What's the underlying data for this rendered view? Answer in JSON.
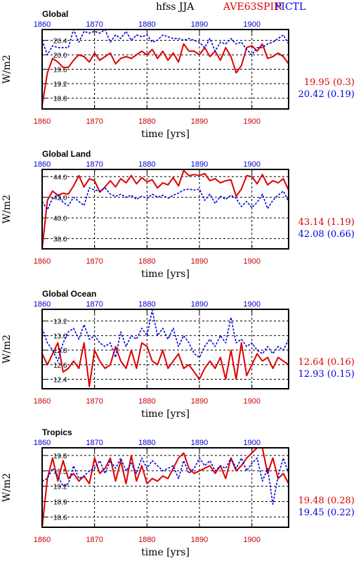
{
  "header": {
    "title": "hfss JJA",
    "legend_red": "AVE63SPIN",
    "legend_blue": "PICTL",
    "legend_red_color": "#dd0000",
    "legend_blue_color": "#0000dd"
  },
  "chart_data": [
    {
      "type": "line",
      "title": "Global",
      "xlabel": "time [yrs]",
      "ylabel": "W/m2",
      "xlim": [
        1860,
        1907
      ],
      "ylim": [
        18.5,
        20.7
      ],
      "xticks": [
        1860,
        1870,
        1880,
        1890,
        1900
      ],
      "yticks": [
        18.8,
        19.2,
        19.6,
        20.0,
        20.4
      ],
      "ytick_labels": [
        "18.8",
        "19.2",
        "19.6",
        "20.0",
        "20.4"
      ],
      "series": [
        {
          "name": "AVE63SPIN",
          "color": "#dd0000",
          "stat": "19.95 (0.3)",
          "x": [
            1860,
            1861,
            1862,
            1863,
            1864,
            1865,
            1866,
            1867,
            1868,
            1869,
            1870,
            1871,
            1872,
            1873,
            1874,
            1875,
            1876,
            1877,
            1878,
            1879,
            1880,
            1881,
            1882,
            1883,
            1884,
            1885,
            1886,
            1887,
            1888,
            1889,
            1890,
            1891,
            1892,
            1893,
            1894,
            1895,
            1896,
            1897,
            1898,
            1899,
            1900,
            1901,
            1902,
            1903,
            1904,
            1905,
            1906,
            1907
          ],
          "y": [
            18.6,
            19.5,
            19.9,
            19.8,
            19.65,
            19.65,
            19.85,
            20.0,
            19.95,
            19.8,
            20.05,
            19.85,
            19.95,
            20.05,
            19.75,
            19.9,
            19.95,
            19.9,
            20.0,
            20.1,
            20.0,
            20.15,
            19.9,
            20.1,
            19.85,
            20.05,
            19.8,
            20.3,
            20.1,
            20.1,
            20.0,
            20.2,
            19.95,
            20.1,
            19.85,
            20.2,
            19.95,
            19.5,
            19.7,
            20.2,
            20.25,
            20.1,
            20.3,
            19.9,
            19.95,
            20.05,
            19.95,
            19.75
          ]
        },
        {
          "name": "PICTL",
          "color": "#0000dd",
          "stat": "20.42 (0.19)",
          "x": [
            1860,
            1861,
            1862,
            1863,
            1864,
            1865,
            1866,
            1867,
            1868,
            1869,
            1870,
            1871,
            1872,
            1873,
            1874,
            1875,
            1876,
            1877,
            1878,
            1879,
            1880,
            1881,
            1882,
            1883,
            1884,
            1885,
            1886,
            1887,
            1888,
            1889,
            1890,
            1891,
            1892,
            1893,
            1894,
            1895,
            1896,
            1897,
            1898,
            1899,
            1900,
            1901,
            1902,
            1903,
            1904,
            1905,
            1906,
            1907
          ],
          "y": [
            20.4,
            20.0,
            20.25,
            20.2,
            20.2,
            20.2,
            20.7,
            20.35,
            20.65,
            20.6,
            20.65,
            20.6,
            20.7,
            20.35,
            20.55,
            20.45,
            20.65,
            20.4,
            20.55,
            20.5,
            20.55,
            20.35,
            20.4,
            20.55,
            20.5,
            20.45,
            20.45,
            20.4,
            20.45,
            20.4,
            20.35,
            20.2,
            20.45,
            20.1,
            20.35,
            20.3,
            20.45,
            20.3,
            20.35,
            20.15,
            20.0,
            20.2,
            20.2,
            20.3,
            20.35,
            20.45,
            20.55,
            20.3
          ]
        }
      ]
    },
    {
      "type": "line",
      "title": "Global Land",
      "xlabel": "time [yrs]",
      "ylabel": "W/m2",
      "xlim": [
        1860,
        1907
      ],
      "ylim": [
        37.0,
        44.7
      ],
      "xticks": [
        1860,
        1870,
        1880,
        1890,
        1900
      ],
      "yticks": [
        38.0,
        40.0,
        42.0,
        44.0
      ],
      "ytick_labels": [
        "38.0",
        "40.0",
        "42.0",
        "44.0"
      ],
      "series": [
        {
          "name": "AVE63SPIN",
          "color": "#dd0000",
          "stat": "43.14 (1.19)",
          "x": [
            1860,
            1861,
            1862,
            1863,
            1864,
            1865,
            1866,
            1867,
            1868,
            1869,
            1870,
            1871,
            1872,
            1873,
            1874,
            1875,
            1876,
            1877,
            1878,
            1879,
            1880,
            1881,
            1882,
            1883,
            1884,
            1885,
            1886,
            1887,
            1888,
            1889,
            1890,
            1891,
            1892,
            1893,
            1894,
            1895,
            1896,
            1897,
            1898,
            1899,
            1900,
            1901,
            1902,
            1903,
            1904,
            1905,
            1906,
            1907
          ],
          "y": [
            37.0,
            41.7,
            42.6,
            42.2,
            42.4,
            42.3,
            43.1,
            44.1,
            43.0,
            43.8,
            43.6,
            42.5,
            43.0,
            43.6,
            43.0,
            43.8,
            43.4,
            44.1,
            43.3,
            43.9,
            43.5,
            43.7,
            42.9,
            43.4,
            43.2,
            43.9,
            43.1,
            44.6,
            44.1,
            44.2,
            44.1,
            44.3,
            43.6,
            43.8,
            43.4,
            43.6,
            43.7,
            42.1,
            42.8,
            44.1,
            44.0,
            43.3,
            44.2,
            43.2,
            43.6,
            43.4,
            43.8,
            42.7
          ]
        },
        {
          "name": "PICTL",
          "color": "#0000dd",
          "stat": "42.08 (0.66)",
          "x": [
            1860,
            1861,
            1862,
            1863,
            1864,
            1865,
            1866,
            1867,
            1868,
            1869,
            1870,
            1871,
            1872,
            1873,
            1874,
            1875,
            1876,
            1877,
            1878,
            1879,
            1880,
            1881,
            1882,
            1883,
            1884,
            1885,
            1886,
            1887,
            1888,
            1889,
            1890,
            1891,
            1892,
            1893,
            1894,
            1895,
            1896,
            1897,
            1898,
            1899,
            1900,
            1901,
            1902,
            1903,
            1904,
            1905,
            1906,
            1907
          ],
          "y": [
            41.6,
            40.8,
            41.9,
            42.2,
            41.5,
            41.2,
            42.0,
            41.6,
            41.2,
            42.9,
            42.7,
            42.6,
            42.9,
            42.3,
            42.1,
            42.3,
            42.0,
            42.2,
            41.8,
            42.1,
            41.9,
            42.3,
            42.0,
            42.2,
            41.9,
            42.2,
            42.4,
            42.7,
            42.8,
            42.7,
            42.8,
            41.7,
            42.3,
            41.4,
            42.1,
            41.8,
            42.2,
            41.9,
            41.1,
            41.6,
            41.0,
            41.5,
            42.3,
            40.9,
            41.7,
            42.2,
            42.6,
            41.6
          ]
        }
      ]
    },
    {
      "type": "line",
      "title": "Global Ocean",
      "xlabel": "time [yrs]",
      "ylabel": "W/m2",
      "xlim": [
        1860,
        1907
      ],
      "ylim": [
        12.27,
        13.36
      ],
      "xticks": [
        1860,
        1870,
        1880,
        1890,
        1900
      ],
      "yticks": [
        12.4,
        12.6,
        12.8,
        13.0,
        13.2
      ],
      "ytick_labels": [
        "12.4",
        "12.6",
        "12.8",
        "13.0",
        "13.2"
      ],
      "series": [
        {
          "name": "AVE63SPIN",
          "color": "#dd0000",
          "stat": "12.64 (0.16)",
          "x": [
            1860,
            1861,
            1862,
            1863,
            1864,
            1865,
            1866,
            1867,
            1868,
            1869,
            1870,
            1871,
            1872,
            1873,
            1874,
            1875,
            1876,
            1877,
            1878,
            1879,
            1880,
            1881,
            1882,
            1883,
            1884,
            1885,
            1886,
            1887,
            1888,
            1889,
            1890,
            1891,
            1892,
            1893,
            1894,
            1895,
            1896,
            1897,
            1898,
            1899,
            1900,
            1901,
            1902,
            1903,
            1904,
            1905,
            1906,
            1907
          ],
          "y": [
            12.75,
            12.6,
            12.75,
            12.9,
            12.5,
            12.55,
            12.65,
            12.55,
            12.9,
            12.3,
            12.8,
            12.65,
            12.55,
            12.6,
            12.85,
            12.65,
            12.55,
            12.8,
            12.55,
            12.9,
            12.85,
            12.65,
            12.6,
            12.8,
            12.55,
            12.65,
            12.75,
            12.55,
            12.6,
            12.5,
            12.4,
            12.55,
            12.65,
            12.55,
            12.7,
            12.4,
            12.8,
            12.4,
            12.9,
            12.45,
            12.6,
            12.75,
            12.65,
            12.7,
            12.55,
            12.7,
            12.65,
            12.6
          ]
        },
        {
          "name": "PICTL",
          "color": "#0000dd",
          "stat": "12.93 (0.15)",
          "x": [
            1860,
            1861,
            1862,
            1863,
            1864,
            1865,
            1866,
            1867,
            1868,
            1869,
            1870,
            1871,
            1872,
            1873,
            1874,
            1875,
            1876,
            1877,
            1878,
            1879,
            1880,
            1881,
            1882,
            1883,
            1884,
            1885,
            1886,
            1887,
            1888,
            1889,
            1890,
            1891,
            1892,
            1893,
            1894,
            1895,
            1896,
            1897,
            1898,
            1899,
            1900,
            1901,
            1902,
            1903,
            1904,
            1905,
            1906,
            1907
          ],
          "y": [
            13.1,
            12.9,
            12.8,
            12.65,
            12.9,
            13.05,
            13.1,
            12.95,
            13.15,
            12.95,
            13.0,
            12.9,
            12.85,
            12.9,
            12.7,
            13.05,
            12.85,
            13.0,
            12.95,
            13.1,
            13.0,
            13.35,
            13.0,
            13.1,
            12.95,
            13.1,
            12.85,
            13.0,
            12.9,
            12.75,
            12.7,
            12.85,
            12.95,
            12.85,
            13.0,
            12.9,
            13.25,
            12.9,
            12.95,
            12.85,
            12.9,
            12.8,
            12.75,
            12.85,
            12.75,
            12.85,
            12.8,
            12.95
          ]
        }
      ]
    },
    {
      "type": "line",
      "title": "Tropics",
      "xlabel": "time [yrs]",
      "ylabel": "W/m2",
      "xlim": [
        1860,
        1907
      ],
      "ylim": [
        18.4,
        19.95
      ],
      "xticks": [
        1860,
        1870,
        1880,
        1890,
        1900
      ],
      "yticks": [
        18.6,
        18.9,
        19.2,
        19.5,
        19.8
      ],
      "ytick_labels": [
        "18.6",
        "18.9",
        "19.2",
        "19.5",
        "19.8"
      ],
      "series": [
        {
          "name": "AVE63SPIN",
          "color": "#dd0000",
          "stat": "19.48 (0.28)",
          "x": [
            1860,
            1861,
            1862,
            1863,
            1864,
            1865,
            1866,
            1867,
            1868,
            1869,
            1870,
            1871,
            1872,
            1873,
            1874,
            1875,
            1876,
            1877,
            1878,
            1879,
            1880,
            1881,
            1882,
            1883,
            1884,
            1885,
            1886,
            1887,
            1888,
            1889,
            1890,
            1891,
            1892,
            1893,
            1894,
            1895,
            1896,
            1897,
            1898,
            1899,
            1900,
            1901,
            1902,
            1903,
            1904,
            1905,
            1906,
            1907
          ],
          "y": [
            18.4,
            19.35,
            19.75,
            19.3,
            19.7,
            19.35,
            19.45,
            19.3,
            19.4,
            19.25,
            19.75,
            19.45,
            19.55,
            19.75,
            19.3,
            19.7,
            19.25,
            19.8,
            19.3,
            19.6,
            19.25,
            19.35,
            19.3,
            19.4,
            19.35,
            19.55,
            19.75,
            19.85,
            19.55,
            19.45,
            19.5,
            19.55,
            19.6,
            19.45,
            19.6,
            19.35,
            19.75,
            19.5,
            19.6,
            19.75,
            19.85,
            19.95,
            19.95,
            19.45,
            19.75,
            19.35,
            19.45,
            19.25
          ]
        },
        {
          "name": "PICTL",
          "color": "#0000dd",
          "stat": "19.45 (0.22)",
          "x": [
            1860,
            1861,
            1862,
            1863,
            1864,
            1865,
            1866,
            1867,
            1868,
            1869,
            1870,
            1871,
            1872,
            1873,
            1874,
            1875,
            1876,
            1877,
            1878,
            1879,
            1880,
            1881,
            1882,
            1883,
            1884,
            1885,
            1886,
            1887,
            1888,
            1889,
            1890,
            1891,
            1892,
            1893,
            1894,
            1895,
            1896,
            1897,
            1898,
            1899,
            1900,
            1901,
            1902,
            1903,
            1904,
            1905,
            1906,
            1907
          ],
          "y": [
            19.3,
            19.35,
            19.55,
            19.4,
            19.2,
            19.25,
            19.6,
            19.35,
            19.4,
            19.5,
            19.55,
            19.7,
            19.45,
            19.7,
            19.55,
            19.75,
            19.5,
            19.65,
            19.45,
            19.75,
            19.55,
            19.7,
            19.6,
            19.5,
            19.55,
            19.6,
            19.35,
            19.7,
            19.45,
            19.55,
            19.75,
            19.6,
            19.7,
            19.5,
            19.6,
            19.55,
            19.75,
            19.55,
            19.75,
            19.5,
            19.65,
            19.75,
            19.3,
            19.55,
            18.85,
            19.4,
            19.75,
            19.45
          ]
        }
      ]
    }
  ]
}
